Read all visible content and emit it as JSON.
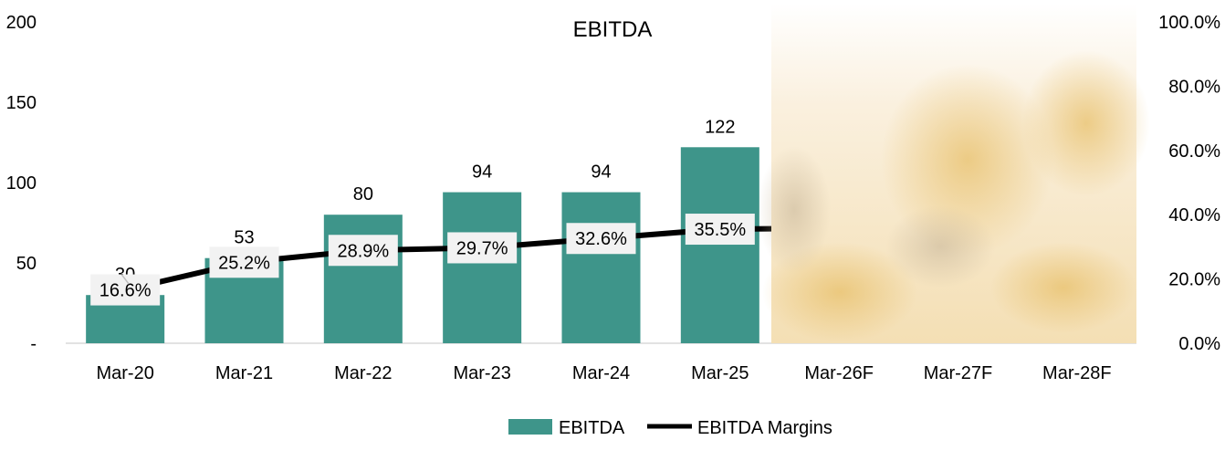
{
  "chart_data": {
    "type": "bar",
    "title": "EBITDA",
    "categories": [
      "Mar-20",
      "Mar-21",
      "Mar-22",
      "Mar-23",
      "Mar-24",
      "Mar-25",
      "Mar-26F",
      "Mar-27F",
      "Mar-28F"
    ],
    "series": [
      {
        "name": "EBITDA",
        "type": "bar",
        "axis": "left",
        "color": "#3e958a",
        "values": [
          30,
          53,
          80,
          94,
          94,
          122,
          null,
          null,
          null
        ],
        "labels": [
          "30",
          "53",
          "80",
          "94",
          "94",
          "122",
          null,
          null,
          null
        ]
      },
      {
        "name": "EBITDA Margins",
        "type": "line",
        "axis": "right",
        "color": "#000000",
        "values": [
          16.6,
          25.2,
          28.9,
          29.7,
          32.6,
          35.5,
          null,
          null,
          null
        ],
        "labels": [
          "16.6%",
          "25.2%",
          "28.9%",
          "29.7%",
          "32.6%",
          "35.5%",
          null,
          null,
          null
        ]
      }
    ],
    "y_left": {
      "ylim": [
        0,
        200
      ],
      "ticks": [
        0,
        50,
        100,
        150,
        200
      ],
      "tick_labels": [
        "-",
        "50",
        "100",
        "150",
        "200"
      ]
    },
    "y_right": {
      "ylim": [
        0,
        100
      ],
      "ticks": [
        0,
        20,
        40,
        60,
        80,
        100
      ],
      "tick_labels": [
        "0.0%",
        "20.0%",
        "40.0%",
        "60.0%",
        "80.0%",
        "100.0%"
      ]
    },
    "forecast_region": {
      "from": "Mar-26F",
      "to": "Mar-28F",
      "obscured": true
    },
    "legend": {
      "placement": "bottom-center",
      "entries": [
        "EBITDA",
        "EBITDA Margins"
      ]
    },
    "grid": false
  }
}
